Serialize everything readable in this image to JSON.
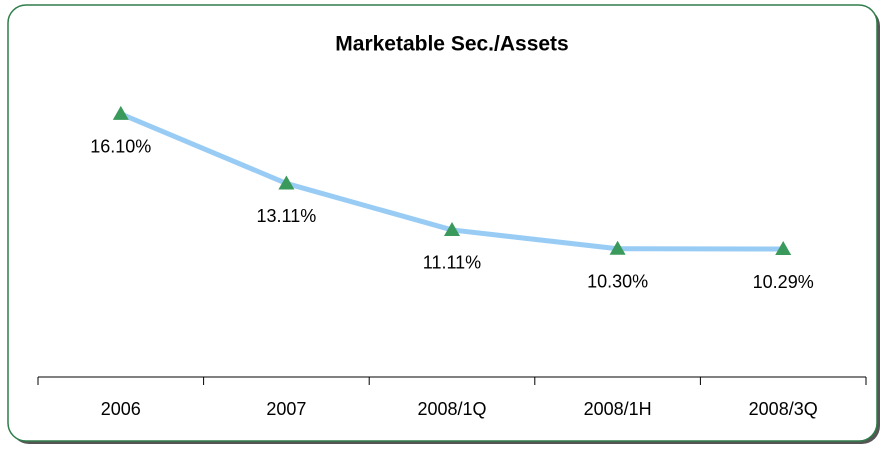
{
  "chart_data": {
    "type": "line",
    "title": "Marketable Sec./Assets",
    "categories": [
      "2006",
      "2007",
      "2008/1Q",
      "2008/1H",
      "2008/3Q"
    ],
    "series": [
      {
        "name": "Marketable Sec./Assets",
        "color": "#99ccf5",
        "marker_color": "#3a9a5b",
        "values": [
          16.1,
          13.11,
          11.11,
          10.3,
          10.29
        ],
        "value_labels": [
          "16.10%",
          "13.11%",
          "11.11%",
          "10.30%",
          "10.29%"
        ]
      }
    ],
    "ylim": [
      5,
      17
    ]
  }
}
